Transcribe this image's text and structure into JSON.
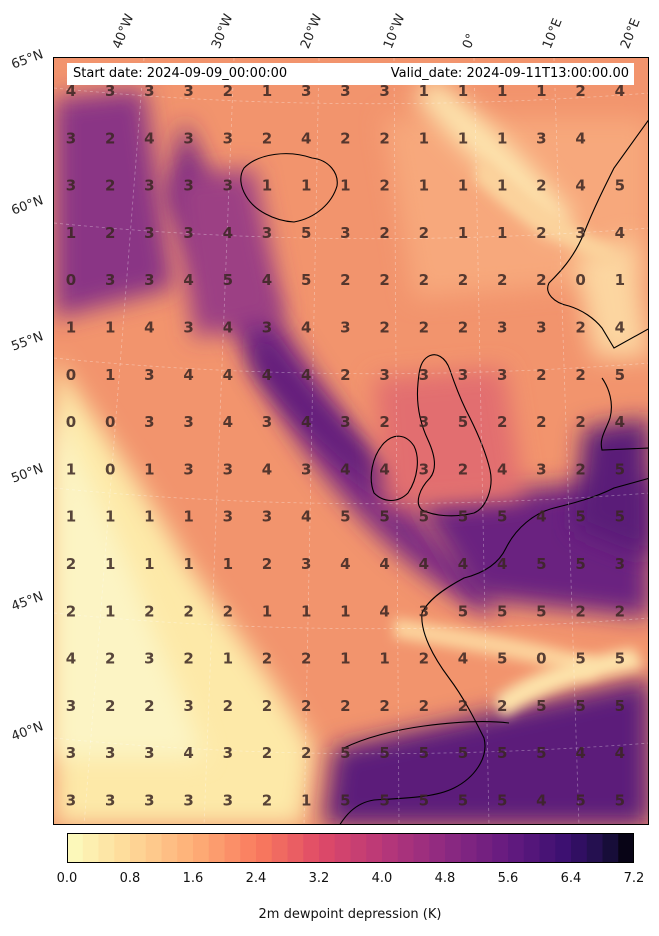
{
  "header": {
    "start_date": "Start date: 2024-09-09_00:00:00",
    "valid_date": "Valid_date: 2024-09-11T13:00:00.00"
  },
  "lat_labels": [
    "65°N",
    "60°N",
    "55°N",
    "50°N",
    "45°N",
    "40°N"
  ],
  "lon_labels": [
    "40°W",
    "30°W",
    "20°W",
    "10°W",
    "0°",
    "10°E",
    "20°E"
  ],
  "grid_values": [
    [
      4,
      3,
      3,
      3,
      2,
      1,
      3,
      3,
      3,
      1,
      1,
      1,
      1,
      2,
      4
    ],
    [
      3,
      2,
      4,
      3,
      3,
      2,
      4,
      2,
      2,
      1,
      1,
      1,
      3,
      4,
      ""
    ],
    [
      3,
      2,
      3,
      3,
      3,
      1,
      1,
      1,
      2,
      1,
      1,
      1,
      2,
      4,
      5
    ],
    [
      1,
      2,
      3,
      3,
      4,
      3,
      5,
      3,
      2,
      2,
      1,
      1,
      2,
      3,
      4
    ],
    [
      0,
      3,
      3,
      4,
      5,
      4,
      5,
      2,
      2,
      2,
      2,
      2,
      2,
      0,
      1
    ],
    [
      1,
      1,
      4,
      3,
      4,
      3,
      4,
      3,
      2,
      2,
      2,
      3,
      3,
      2,
      4
    ],
    [
      0,
      1,
      3,
      4,
      4,
      4,
      4,
      2,
      3,
      3,
      3,
      3,
      2,
      2,
      5
    ],
    [
      0,
      0,
      3,
      3,
      4,
      3,
      4,
      3,
      2,
      3,
      5,
      2,
      2,
      2,
      4
    ],
    [
      1,
      0,
      1,
      3,
      3,
      4,
      3,
      4,
      4,
      3,
      2,
      4,
      3,
      2,
      5
    ],
    [
      1,
      1,
      1,
      1,
      3,
      3,
      4,
      5,
      5,
      5,
      5,
      5,
      4,
      5,
      5
    ],
    [
      2,
      1,
      1,
      1,
      1,
      2,
      3,
      4,
      4,
      4,
      4,
      4,
      5,
      5,
      3
    ],
    [
      2,
      1,
      2,
      2,
      2,
      1,
      1,
      1,
      4,
      3,
      5,
      5,
      5,
      2,
      2
    ],
    [
      4,
      2,
      3,
      2,
      1,
      2,
      2,
      1,
      1,
      2,
      4,
      5,
      0,
      5,
      5
    ],
    [
      3,
      2,
      2,
      3,
      2,
      2,
      2,
      2,
      2,
      2,
      2,
      2,
      5,
      5,
      5
    ],
    [
      3,
      3,
      3,
      4,
      3,
      2,
      2,
      5,
      5,
      5,
      5,
      5,
      5,
      4,
      4
    ],
    [
      3,
      3,
      3,
      3,
      3,
      2,
      1,
      5,
      5,
      5,
      5,
      5,
      4,
      5,
      5
    ]
  ],
  "colorbar": {
    "label": "2m dewpoint depression (K)",
    "min": 0.0,
    "max": 7.2,
    "step": 0.2,
    "ticks": [
      "0.0",
      "0.8",
      "1.6",
      "2.4",
      "3.2",
      "4.0",
      "4.8",
      "5.6",
      "6.4",
      "7.2"
    ],
    "colormap": "magma_r"
  }
}
